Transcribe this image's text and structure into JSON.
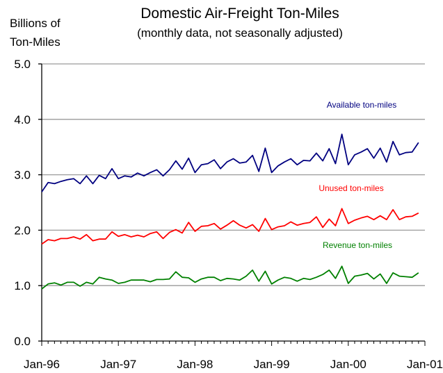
{
  "chart_data": {
    "type": "line",
    "title": "Domestic Air-Freight Ton-Miles",
    "subtitle": "(monthly data, not seasonally adjusted)",
    "ylabel_line1": "Billions of",
    "ylabel_line2": "Ton-Miles",
    "ylim": [
      0,
      5
    ],
    "y_ticks": [
      "0.0",
      "1.0",
      "2.0",
      "3.0",
      "4.0",
      "5.0"
    ],
    "x_range": [
      "1996-01",
      "2001-01"
    ],
    "x_ticks": [
      "Jan-96",
      "Jan-97",
      "Jan-98",
      "Jan-99",
      "Jan-00",
      "Jan-01"
    ],
    "x": [
      "1996-01",
      "1996-02",
      "1996-03",
      "1996-04",
      "1996-05",
      "1996-06",
      "1996-07",
      "1996-08",
      "1996-09",
      "1996-10",
      "1996-11",
      "1996-12",
      "1997-01",
      "1997-02",
      "1997-03",
      "1997-04",
      "1997-05",
      "1997-06",
      "1997-07",
      "1997-08",
      "1997-09",
      "1997-10",
      "1997-11",
      "1997-12",
      "1998-01",
      "1998-02",
      "1998-03",
      "1998-04",
      "1998-05",
      "1998-06",
      "1998-07",
      "1998-08",
      "1998-09",
      "1998-10",
      "1998-11",
      "1998-12",
      "1999-01",
      "1999-02",
      "1999-03",
      "1999-04",
      "1999-05",
      "1999-06",
      "1999-07",
      "1999-08",
      "1999-09",
      "1999-10",
      "1999-11",
      "1999-12",
      "2000-01",
      "2000-02",
      "2000-03",
      "2000-04",
      "2000-05",
      "2000-06",
      "2000-07",
      "2000-08",
      "2000-09",
      "2000-10",
      "2000-11",
      "2000-12"
    ],
    "grid": true,
    "series": [
      {
        "name": "Available ton-miles",
        "color": "#000080",
        "values": [
          2.69,
          2.86,
          2.84,
          2.88,
          2.91,
          2.93,
          2.84,
          2.98,
          2.84,
          2.99,
          2.93,
          3.11,
          2.93,
          2.98,
          2.96,
          3.03,
          2.98,
          3.04,
          3.09,
          2.98,
          3.09,
          3.25,
          3.1,
          3.3,
          3.04,
          3.18,
          3.2,
          3.27,
          3.11,
          3.23,
          3.29,
          3.21,
          3.23,
          3.35,
          3.06,
          3.48,
          3.04,
          3.16,
          3.23,
          3.29,
          3.18,
          3.26,
          3.25,
          3.39,
          3.25,
          3.47,
          3.2,
          3.73,
          3.18,
          3.36,
          3.41,
          3.47,
          3.3,
          3.48,
          3.23,
          3.6,
          3.36,
          3.4,
          3.41,
          3.58
        ]
      },
      {
        "name": "Unused ton-miles",
        "color": "#ff0000",
        "values": [
          1.75,
          1.83,
          1.81,
          1.85,
          1.85,
          1.88,
          1.84,
          1.92,
          1.81,
          1.84,
          1.84,
          1.97,
          1.89,
          1.92,
          1.88,
          1.91,
          1.88,
          1.94,
          1.97,
          1.85,
          1.96,
          2.01,
          1.95,
          2.14,
          1.98,
          2.07,
          2.08,
          2.12,
          2.02,
          2.09,
          2.17,
          2.09,
          2.04,
          2.1,
          1.98,
          2.21,
          2.01,
          2.06,
          2.08,
          2.15,
          2.09,
          2.12,
          2.14,
          2.24,
          2.05,
          2.2,
          2.08,
          2.39,
          2.12,
          2.18,
          2.22,
          2.25,
          2.19,
          2.26,
          2.19,
          2.37,
          2.19,
          2.24,
          2.25,
          2.31
        ]
      },
      {
        "name": "Revenue ton-miles",
        "color": "#008000",
        "values": [
          0.94,
          1.03,
          1.05,
          1.01,
          1.06,
          1.06,
          0.99,
          1.06,
          1.03,
          1.15,
          1.12,
          1.1,
          1.04,
          1.06,
          1.1,
          1.1,
          1.1,
          1.07,
          1.11,
          1.11,
          1.12,
          1.25,
          1.15,
          1.14,
          1.06,
          1.12,
          1.15,
          1.15,
          1.09,
          1.13,
          1.12,
          1.1,
          1.17,
          1.28,
          1.08,
          1.26,
          1.03,
          1.1,
          1.15,
          1.13,
          1.08,
          1.13,
          1.11,
          1.15,
          1.2,
          1.28,
          1.13,
          1.35,
          1.04,
          1.17,
          1.19,
          1.22,
          1.12,
          1.21,
          1.04,
          1.23,
          1.17,
          1.16,
          1.15,
          1.23
        ]
      }
    ]
  }
}
